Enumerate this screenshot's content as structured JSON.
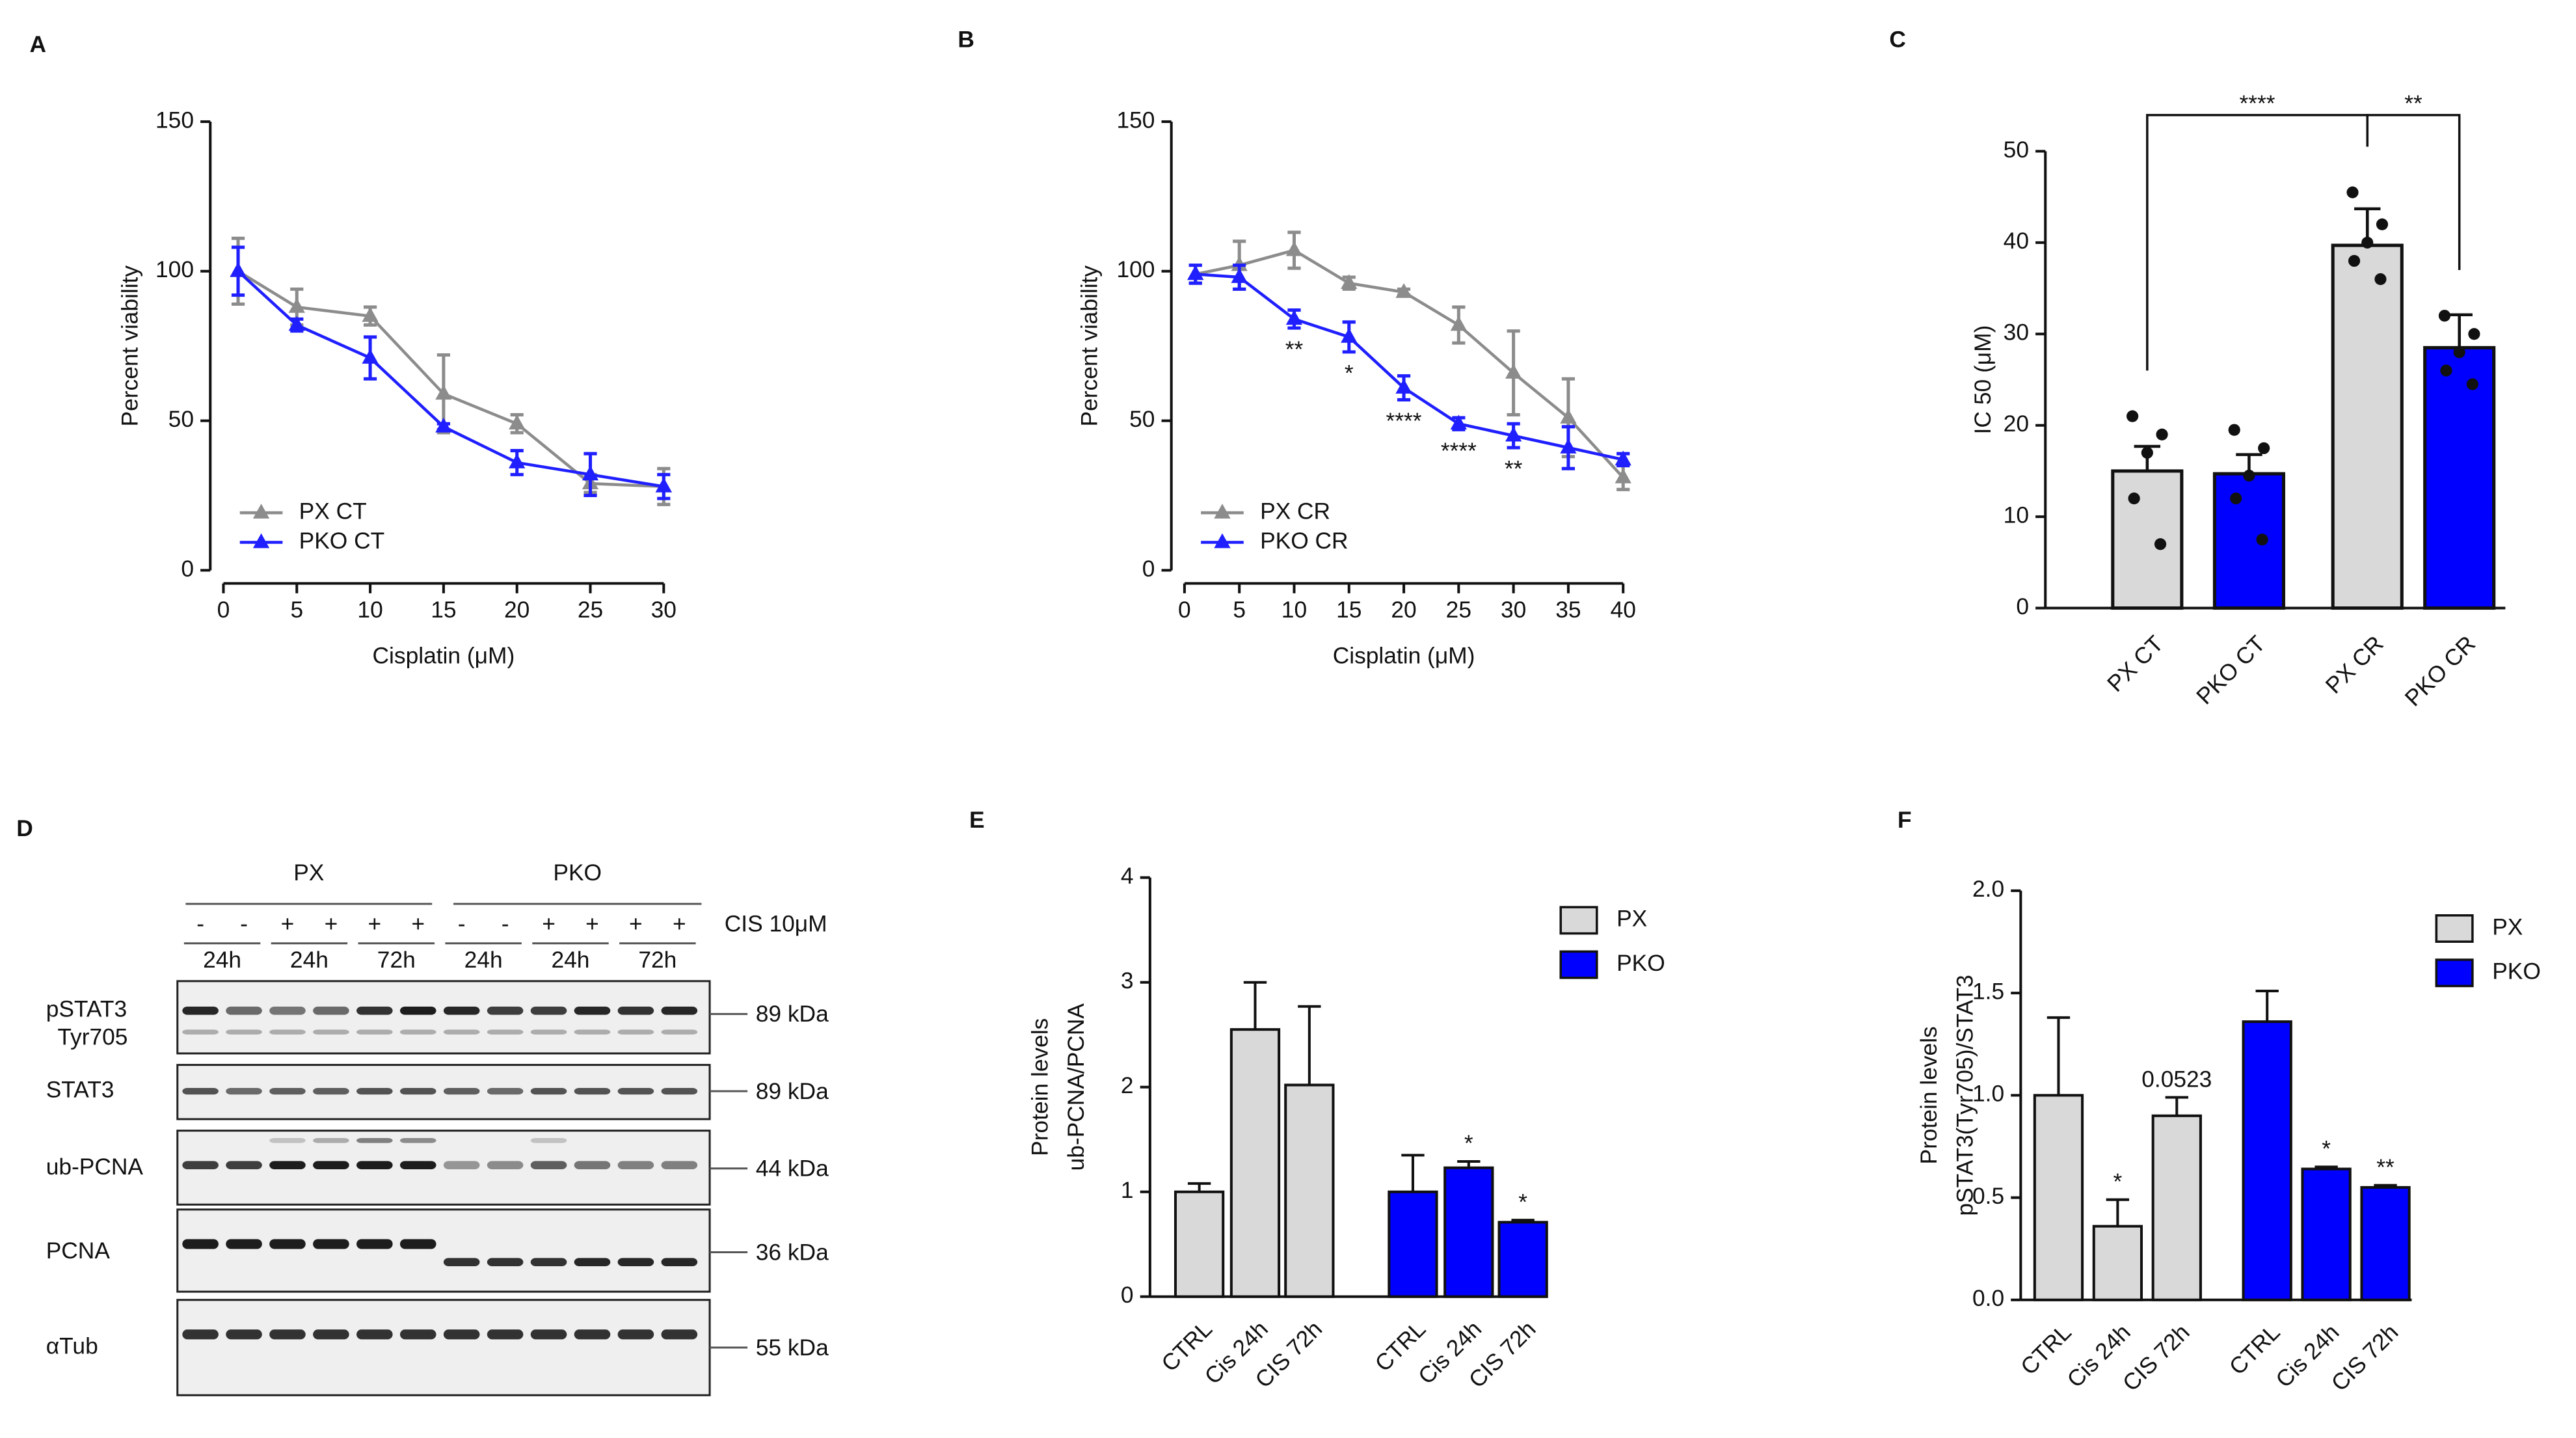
{
  "chart_data": [
    {
      "type": "line",
      "panel": "A",
      "xlabel": "Cisplatin (μM)",
      "ylabel": "Percent viability",
      "x": [
        1,
        5,
        10,
        15,
        20,
        25,
        30
      ],
      "xlim": [
        0,
        30
      ],
      "xticks": [
        0,
        5,
        10,
        15,
        20,
        25,
        30
      ],
      "ylim": [
        0,
        150
      ],
      "yticks": [
        0,
        50,
        100,
        150
      ],
      "legend": "lower left",
      "series": [
        {
          "name": "PX CT",
          "color": "#8c8c8c",
          "values": [
            100,
            88,
            85,
            59,
            49,
            29,
            28
          ],
          "errors": [
            11,
            6,
            3,
            13,
            3,
            3,
            6
          ]
        },
        {
          "name": "PKO CT",
          "color": "#1f1fff",
          "values": [
            100,
            82,
            71,
            48,
            36,
            32,
            28
          ],
          "errors": [
            8,
            2,
            7,
            1,
            4,
            7,
            4
          ]
        }
      ]
    },
    {
      "type": "line",
      "panel": "B",
      "xlabel": "Cisplatin (μM)",
      "ylabel": "Percent viability",
      "x": [
        1,
        5,
        10,
        15,
        20,
        25,
        30,
        35,
        40
      ],
      "xlim": [
        0,
        40
      ],
      "xticks": [
        0,
        5,
        10,
        15,
        20,
        25,
        30,
        35,
        40
      ],
      "ylim": [
        0,
        150
      ],
      "yticks": [
        0,
        50,
        100,
        150
      ],
      "legend": "lower left",
      "series": [
        {
          "name": "PX CR",
          "color": "#8c8c8c",
          "values": [
            99,
            102,
            107,
            96,
            93,
            82,
            66,
            51,
            31
          ],
          "errors": [
            3,
            8,
            6,
            2,
            1,
            6,
            14,
            13,
            4
          ]
        },
        {
          "name": "PKO CR",
          "color": "#1f1fff",
          "values": [
            99,
            98,
            84,
            78,
            61,
            49,
            45,
            41,
            37
          ],
          "errors": [
            3,
            4,
            3,
            5,
            4,
            2,
            4,
            7,
            2
          ]
        }
      ],
      "annotations": [
        {
          "text": "**",
          "x": 10
        },
        {
          "text": "*",
          "x": 15
        },
        {
          "text": "****",
          "x": 20
        },
        {
          "text": "****",
          "x": 25
        },
        {
          "text": "**",
          "x": 30
        }
      ]
    },
    {
      "type": "bar",
      "panel": "C",
      "ylabel": "IC 50 (μM)",
      "categories": [
        "PX CT",
        "PKO CT",
        "PX CR",
        "PKO CR"
      ],
      "values": [
        15,
        14.7,
        39.7,
        28.5
      ],
      "errors": [
        2.7,
        2.1,
        4,
        3.6
      ],
      "colors": [
        "#d9d9d9",
        "#0000ff",
        "#d9d9d9",
        "#0000ff"
      ],
      "points": [
        [
          21,
          19,
          17,
          12,
          7
        ],
        [
          19.5,
          17.5,
          14.5,
          12,
          7.5
        ],
        [
          45.5,
          42,
          40,
          38,
          36
        ],
        [
          32,
          30,
          28,
          26,
          24.5
        ]
      ],
      "ylim": [
        0,
        50
      ],
      "yticks": [
        0,
        10,
        20,
        30,
        40,
        50
      ],
      "brackets": [
        {
          "text": "****",
          "from": 0,
          "to": 2
        },
        {
          "text": "**",
          "from": 2,
          "to": 3
        }
      ]
    },
    {
      "type": "grouped_bar",
      "panel": "E",
      "ylabel": [
        "Protein levels",
        "ub-PCNA/PCNA"
      ],
      "categories": [
        "CTRL",
        "Cis 24h",
        "CIS 72h"
      ],
      "ylim": [
        0,
        4
      ],
      "yticks": [
        0,
        1,
        2,
        3,
        4
      ],
      "legend": "upper right",
      "series": [
        {
          "name": "PX",
          "color": "#d9d9d9",
          "values": [
            1,
            2.55,
            2.02
          ],
          "errors": [
            0.08,
            0.45,
            0.75
          ],
          "annotations": [
            null,
            null,
            null
          ]
        },
        {
          "name": "PKO",
          "color": "#0000ff",
          "values": [
            1,
            1.23,
            0.71
          ],
          "errors": [
            0.35,
            0.06,
            0.02
          ],
          "annotations": [
            null,
            "*",
            "*"
          ]
        }
      ]
    },
    {
      "type": "grouped_bar",
      "panel": "F",
      "ylabel": [
        "Protein levels",
        "pSTAT3(Tyr705)/STAT3"
      ],
      "categories": [
        "CTRL",
        "Cis 24h",
        "CIS 72h"
      ],
      "ylim": [
        0,
        2
      ],
      "yticks": [
        {
          "value": 0,
          "label": "0.0"
        },
        0.5,
        {
          "value": 1,
          "label": "1.0"
        },
        1.5,
        {
          "value": 2,
          "label": "2.0"
        }
      ],
      "legend": "upper right",
      "series": [
        {
          "name": "PX",
          "color": "#d9d9d9",
          "values": [
            1,
            0.36,
            0.9
          ],
          "errors": [
            0.38,
            0.13,
            0.09
          ],
          "annotations": [
            null,
            "*",
            "0.0523"
          ]
        },
        {
          "name": "PKO",
          "color": "#0000ff",
          "values": [
            1.36,
            0.64,
            0.55
          ],
          "errors": [
            0.15,
            0.01,
            0.01
          ],
          "annotations": [
            null,
            "*",
            "**"
          ]
        }
      ]
    }
  ],
  "blot": {
    "panel": "D",
    "groups": [
      "PX",
      "PKO"
    ],
    "treatment": "CIS 10μM",
    "signs": [
      "-",
      "-",
      "+",
      "+",
      "+",
      "+",
      "-",
      "-",
      "+",
      "+",
      "+",
      "+"
    ],
    "times": [
      "24h",
      "24h",
      "72h",
      "24h",
      "24h",
      "72h"
    ],
    "rows": [
      {
        "label": "pSTAT3",
        "sublabel": "Tyr705",
        "size": "89 kDa"
      },
      {
        "label": "STAT3",
        "size": "89 kDa"
      },
      {
        "label": "ub-PCNA",
        "size": "44 kDa"
      },
      {
        "label": "PCNA",
        "size": "36 kDa"
      },
      {
        "label": "αTub",
        "size": "55 kDa"
      }
    ]
  }
}
